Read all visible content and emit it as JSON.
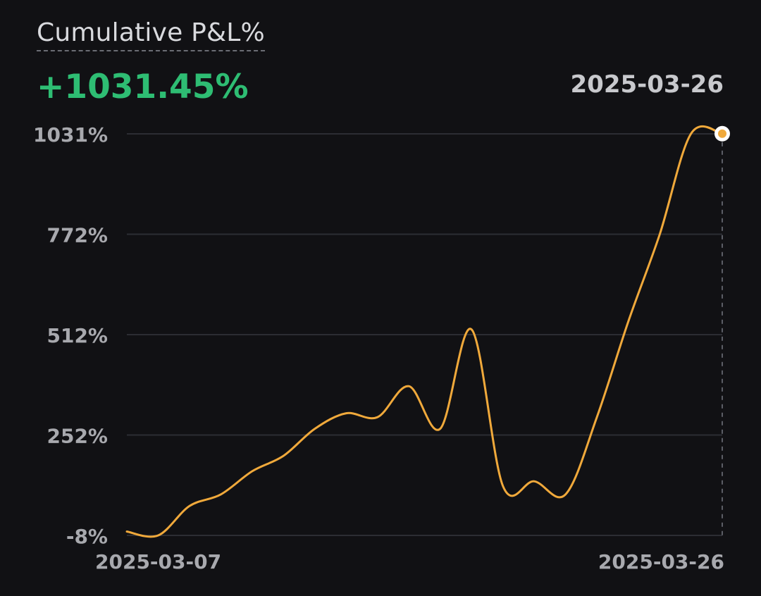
{
  "header": {
    "title": "Cumulative P&L%",
    "value": "+1031.45%",
    "selected_date": "2025-03-26"
  },
  "colors": {
    "background": "#111114",
    "line": "#f0a93b",
    "positive": "#2ebd73",
    "grid": "#2c2d33",
    "text": "#a8a9ae"
  },
  "chart_data": {
    "type": "line",
    "x_range": [
      "2025-03-07",
      "2025-03-26"
    ],
    "x_tick_labels": [
      "2025-03-07",
      "2025-03-26"
    ],
    "y_tick_labels": [
      "1031%",
      "772%",
      "512%",
      "252%",
      "-8%"
    ],
    "ylim": [
      -8,
      1031
    ],
    "grid": true,
    "series": [
      {
        "x": [
          "2025-03-07",
          "2025-03-08",
          "2025-03-09",
          "2025-03-10",
          "2025-03-11",
          "2025-03-12",
          "2025-03-13",
          "2025-03-14",
          "2025-03-15",
          "2025-03-16",
          "2025-03-17",
          "2025-03-18",
          "2025-03-19",
          "2025-03-20",
          "2025-03-21",
          "2025-03-22",
          "2025-03-23",
          "2025-03-24",
          "2025-03-25",
          "2025-03-26"
        ],
        "y": [
          2,
          -8,
          68,
          98,
          158,
          198,
          268,
          308,
          298,
          378,
          268,
          525,
          120,
          132,
          98,
          298,
          545,
          770,
          1031,
          1031
        ]
      }
    ],
    "highlight_point": {
      "x": "2025-03-26",
      "y": 1031.45
    }
  }
}
